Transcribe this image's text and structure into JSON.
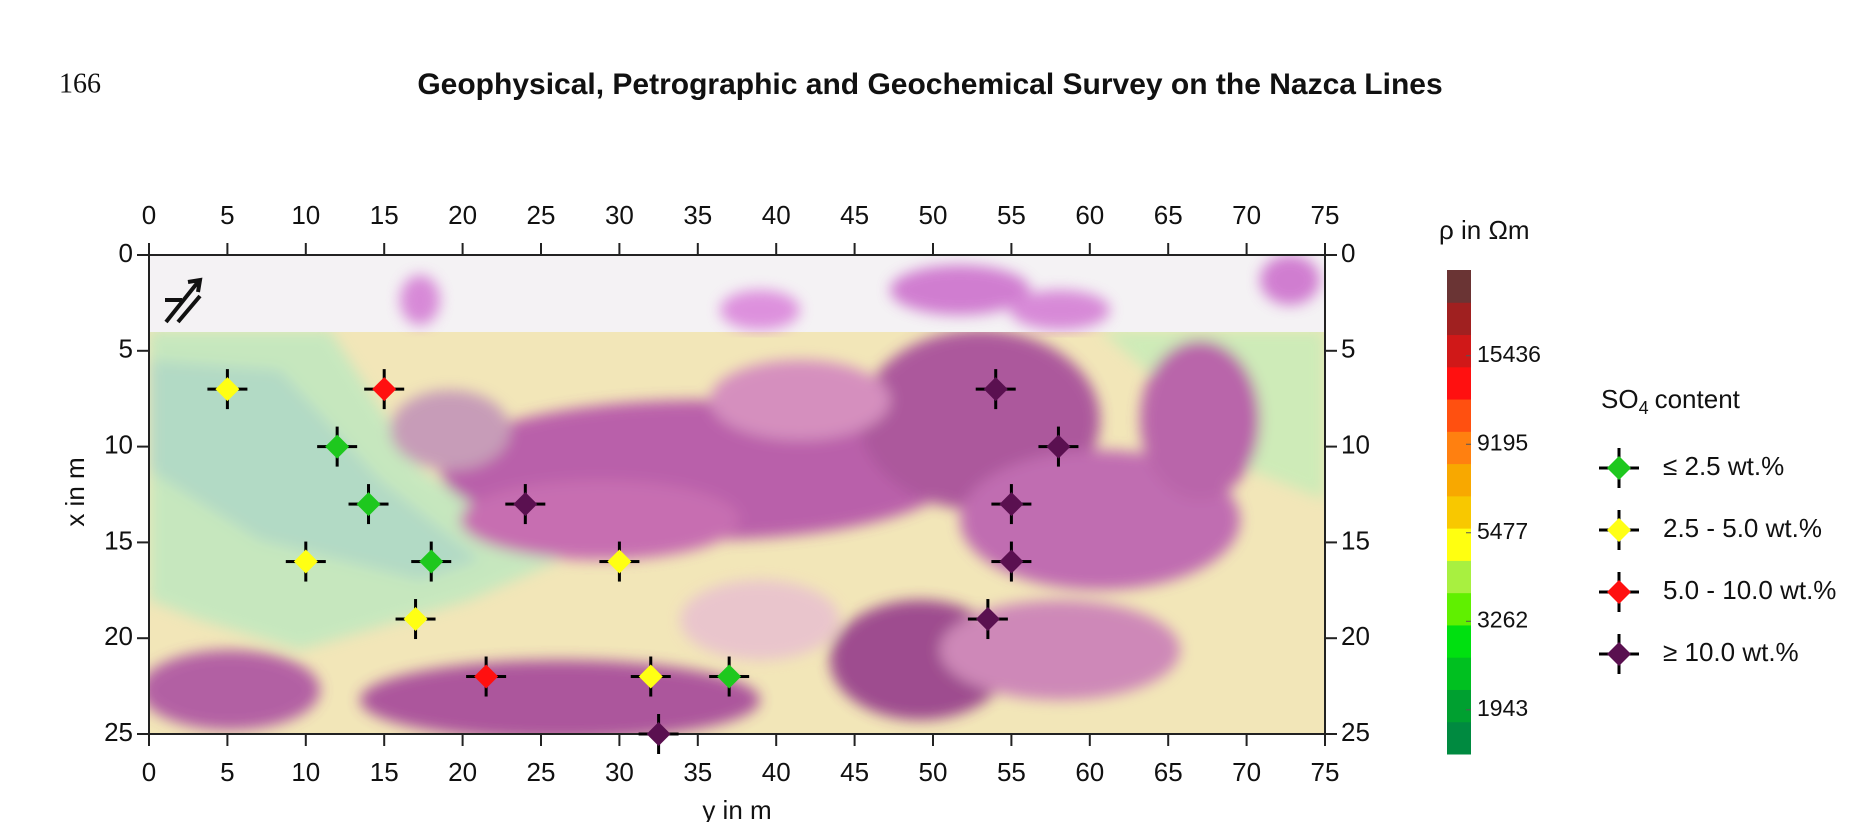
{
  "header": {
    "page_number": "166",
    "title": "Geophysical, Petrographic and Geochemical Survey on the Nazca Lines"
  },
  "chart_data": {
    "type": "scatter",
    "xlabel": "y in m",
    "ylabel": "x in m",
    "xlim": [
      0,
      75
    ],
    "xticks": [
      0,
      5,
      10,
      15,
      20,
      25,
      30,
      35,
      40,
      45,
      50,
      55,
      60,
      65,
      70,
      75
    ],
    "ylim": [
      0,
      25
    ],
    "yticks": [
      0,
      5,
      10,
      15,
      20,
      25
    ],
    "y_inverted": true,
    "legend_title": [
      "SO",
      "4",
      "content"
    ],
    "series": [
      {
        "name": "≤ 2.5 wt.%",
        "color": "#1ec81e",
        "x": [
          12,
          14,
          18,
          37
        ],
        "values": [
          10,
          13,
          16,
          22
        ]
      },
      {
        "name": "2.5 - 5.0 wt.%",
        "color": "#ffff14",
        "x": [
          5,
          10,
          17,
          30,
          32
        ],
        "values": [
          7,
          16,
          19,
          16,
          22
        ]
      },
      {
        "name": "5.0 - 10.0 wt.%",
        "color": "#ff1010",
        "x": [
          15,
          21.5
        ],
        "values": [
          7,
          22
        ]
      },
      {
        "name": "≥ 10.0 wt.%",
        "color": "#5a1050",
        "x": [
          54,
          58,
          24,
          55,
          55,
          53.5,
          32.5
        ],
        "values": [
          7,
          10,
          13,
          13,
          16,
          19,
          25
        ]
      }
    ],
    "colorbar": {
      "label": "ρ in Ωm",
      "log": true,
      "clim": [
        1500,
        25500
      ],
      "ticks": [
        15436,
        9195,
        5477,
        3262,
        1943
      ],
      "colors": [
        "#008a40",
        "#00a030",
        "#00c020",
        "#00e010",
        "#60f000",
        "#a8f040",
        "#ffff10",
        "#f8c800",
        "#f8a800",
        "#ff8010",
        "#ff5010",
        "#ff1010",
        "#d01818",
        "#a02020",
        "#6a3434"
      ]
    }
  }
}
